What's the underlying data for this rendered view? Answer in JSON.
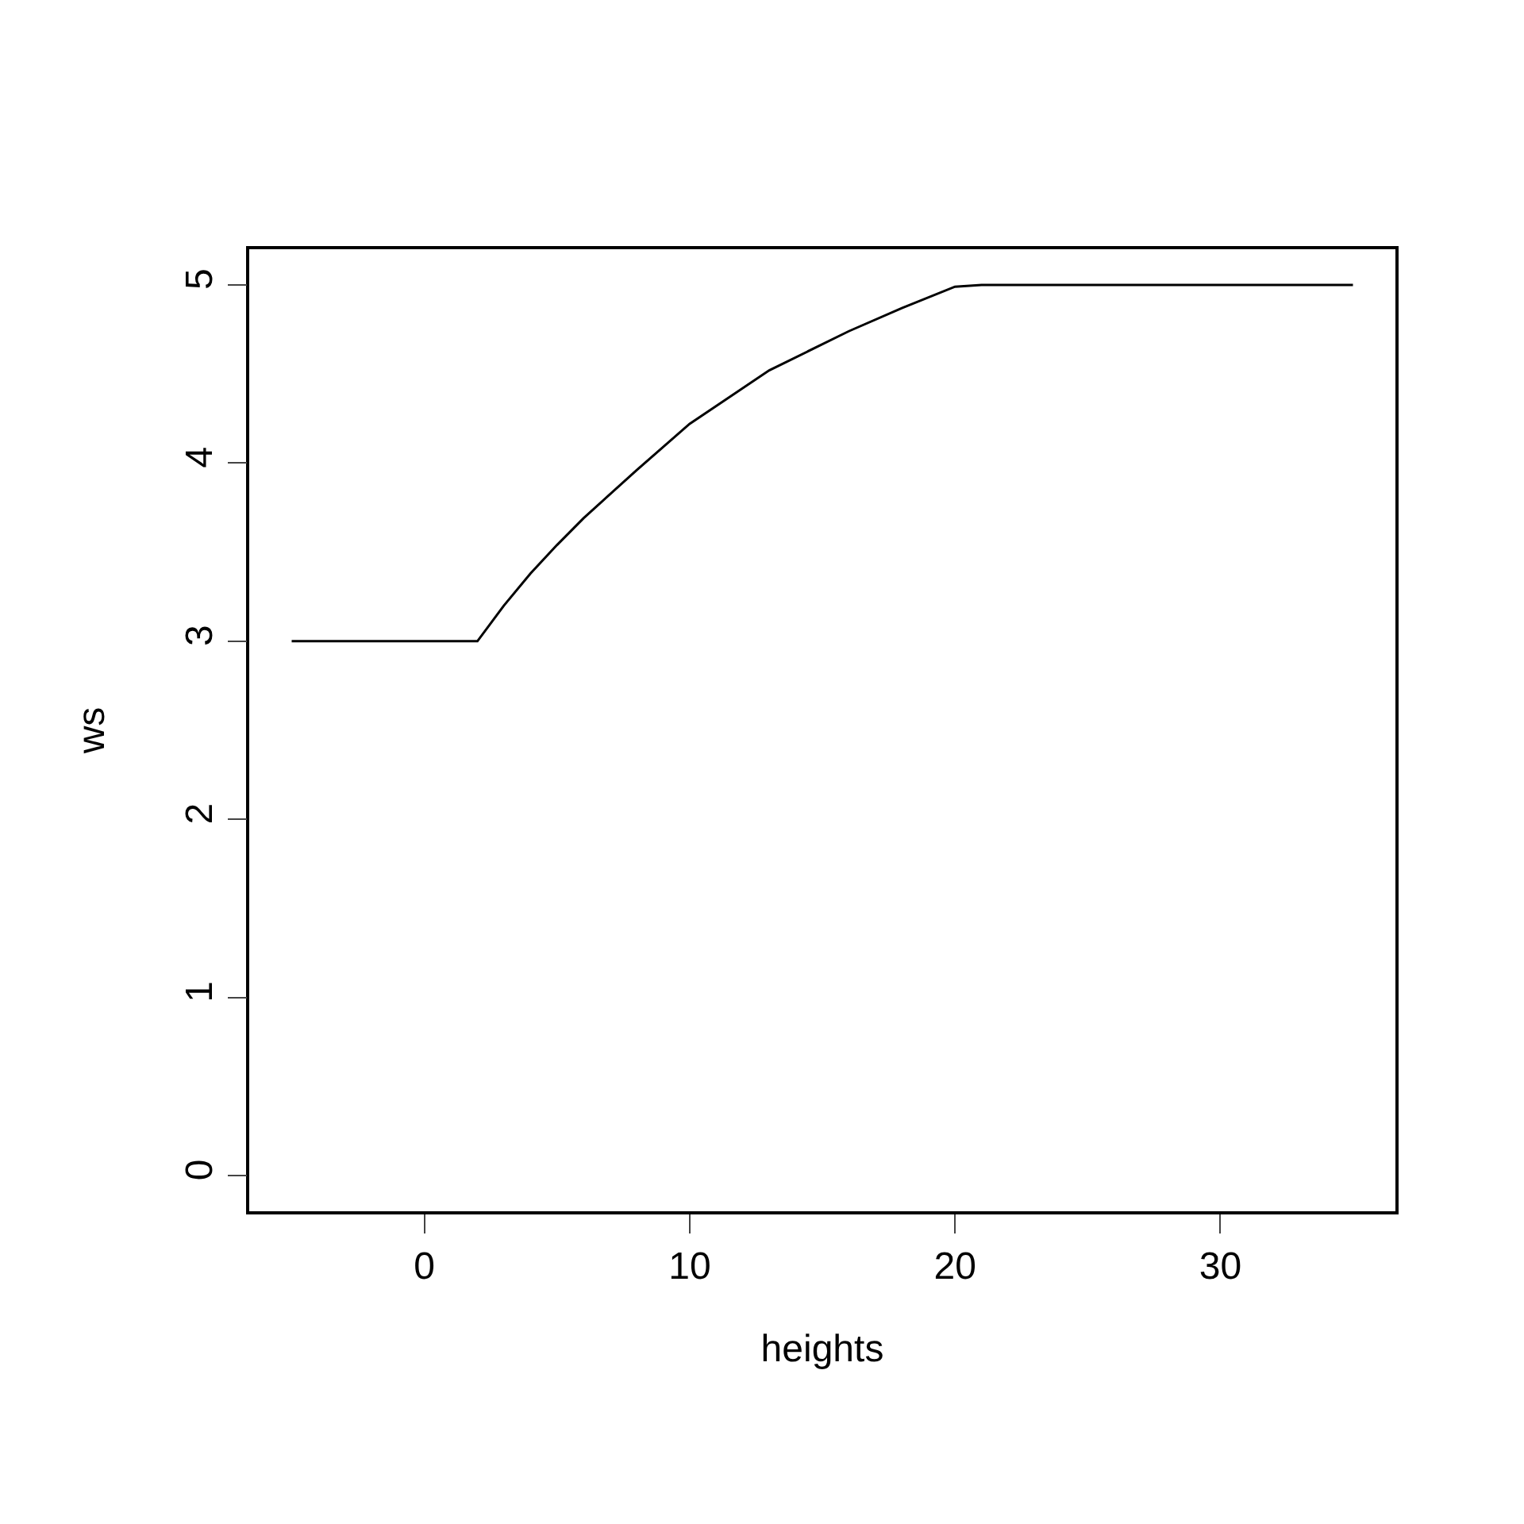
{
  "chart_data": {
    "type": "line",
    "xlabel": "heights",
    "ylabel": "ws",
    "x": [
      -5,
      2,
      3,
      4,
      5,
      6,
      8,
      10,
      13,
      16,
      18,
      20,
      21,
      35
    ],
    "series": [
      {
        "color": "#000000",
        "values": [
          3,
          3,
          3.2,
          3.38,
          3.54,
          3.69,
          3.96,
          4.22,
          4.52,
          4.74,
          4.87,
          4.99,
          5,
          5
        ]
      }
    ],
    "xlim": [
      -6.6,
      36.6
    ],
    "xticks": [
      0,
      10,
      20,
      30
    ],
    "ylim": [
      -0.2,
      5.2
    ],
    "yticks": [
      0,
      1,
      2,
      3,
      4,
      5
    ],
    "marker": "none",
    "line_style": "solid"
  }
}
